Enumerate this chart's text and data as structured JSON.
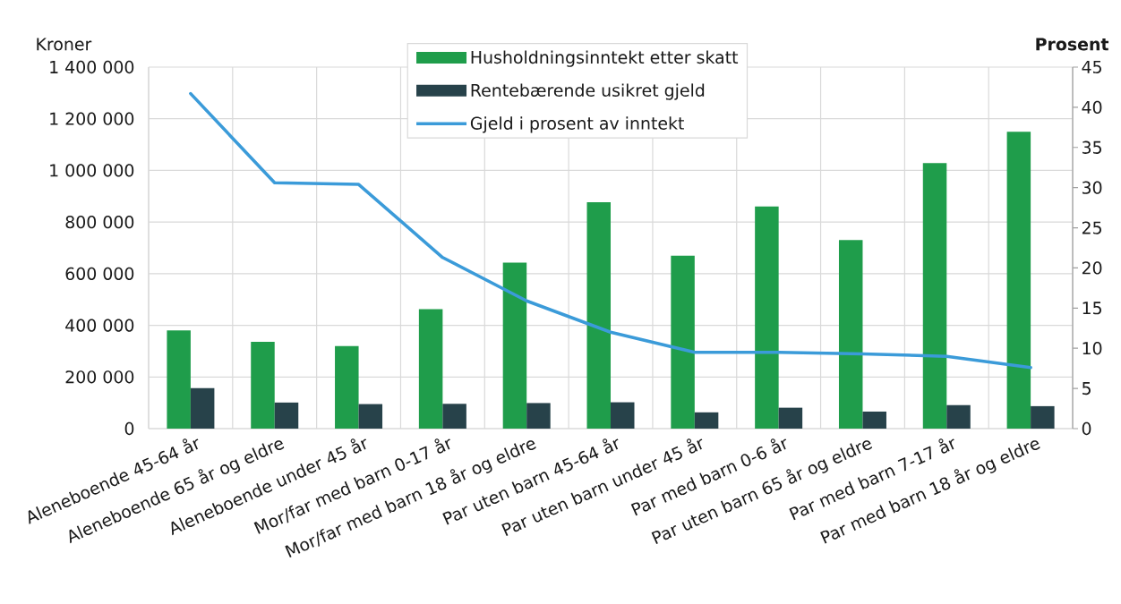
{
  "chart_data": {
    "type": "bar",
    "categories": [
      "Aleneboende 45-64 år",
      "Aleneboende 65 år og eldre",
      "Aleneboende under 45 år",
      "Mor/far med barn 0-17 år",
      "Mor/far med barn 18 år og eldre",
      "Par uten barn 45-64 år",
      "Par uten barn under 45 år",
      "Par med barn 0-6 år",
      "Par uten barn 65 år og eldre",
      "Par med barn 7-17 år",
      "Par med barn 18 år og eldre"
    ],
    "series": [
      {
        "name": "Husholdningsinntekt etter skatt",
        "color": "#1f9d4b",
        "values": [
          380000,
          336000,
          320000,
          463000,
          643000,
          877000,
          670000,
          860000,
          730000,
          1028000,
          1150000
        ]
      },
      {
        "name": "Rentebærende usikret gjeld",
        "color": "#27424a",
        "values": [
          157000,
          101000,
          95000,
          96000,
          99000,
          102000,
          63000,
          81000,
          66000,
          91000,
          87000
        ]
      },
      {
        "name": "Gjeld i prosent av inntekt",
        "type": "line",
        "axis": "y2",
        "color": "#3b9bd9",
        "values": [
          41.7,
          30.6,
          30.4,
          21.3,
          15.9,
          12.0,
          9.5,
          9.5,
          9.3,
          9.0,
          7.6
        ]
      }
    ],
    "ylabel": "Kroner",
    "y2label": "Prosent",
    "ylim": [
      0,
      1400000
    ],
    "yticks": [
      0,
      {
        "value": 200000,
        "label": "200 000"
      },
      {
        "value": 400000,
        "label": "400 000"
      },
      {
        "value": 600000,
        "label": "600 000"
      },
      {
        "value": 800000,
        "label": "800 000"
      },
      {
        "value": 1000000,
        "label": "1 000 000"
      },
      {
        "value": 1200000,
        "label": "1 200 000"
      },
      {
        "value": 1400000,
        "label": "1 400 000"
      }
    ],
    "y2lim": [
      0,
      45
    ],
    "y2ticks": [
      0,
      5,
      10,
      15,
      20,
      25,
      30,
      35,
      40,
      45
    ],
    "grid": true,
    "legend": "top"
  }
}
